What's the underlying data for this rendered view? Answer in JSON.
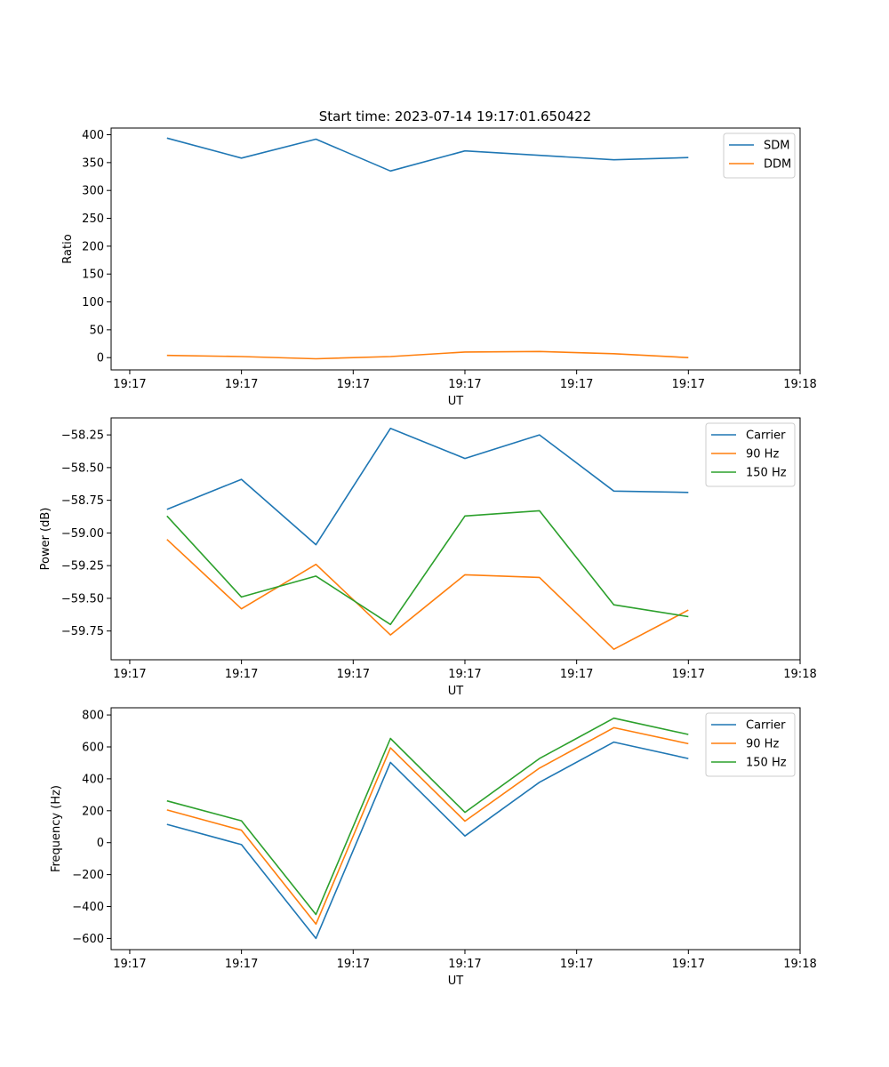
{
  "figure_title": "Start time: 2023-07-14 19:17:01.650422",
  "chart_data": [
    {
      "type": "line",
      "title": "Start time: 2023-07-14 19:17:01.650422",
      "xlabel": "UT",
      "ylabel": "Ratio",
      "x_tick_labels": [
        "19:17",
        "19:17",
        "19:17",
        "19:17",
        "19:17",
        "19:17",
        "19:18"
      ],
      "x_index_range": [
        -0.25,
        9.0
      ],
      "x": [
        0.5,
        1.5,
        2.5,
        3.5,
        4.5,
        5.5,
        6.5,
        7.5
      ],
      "ylim": [
        -22,
        412
      ],
      "y_ticks": [
        0,
        50,
        100,
        150,
        200,
        250,
        300,
        350,
        400
      ],
      "legend": "top-right",
      "series": [
        {
          "name": "SDM",
          "color": "#1f77b4",
          "values": [
            394,
            358,
            392,
            335,
            371,
            363,
            355,
            359
          ]
        },
        {
          "name": "DDM",
          "color": "#ff7f0e",
          "values": [
            4,
            2,
            -2,
            2,
            10,
            11,
            7,
            0
          ]
        }
      ]
    },
    {
      "type": "line",
      "title": "",
      "xlabel": "UT",
      "ylabel": "Power (dB)",
      "x_tick_labels": [
        "19:17",
        "19:17",
        "19:17",
        "19:17",
        "19:17",
        "19:17",
        "19:18"
      ],
      "x_index_range": [
        -0.25,
        9.0
      ],
      "x": [
        0.5,
        1.5,
        2.5,
        3.5,
        4.5,
        5.5,
        6.5,
        7.5
      ],
      "ylim": [
        -59.97,
        -58.12
      ],
      "y_ticks": [
        -59.75,
        -59.5,
        -59.25,
        -59.0,
        -58.75,
        -58.5,
        -58.25
      ],
      "y_tick_labels": [
        "−59.75",
        "−59.50",
        "−59.25",
        "−59.00",
        "−58.75",
        "−58.50",
        "−58.25"
      ],
      "legend": "top-right",
      "series": [
        {
          "name": "Carrier",
          "color": "#1f77b4",
          "values": [
            -58.82,
            -58.59,
            -59.09,
            -58.2,
            -58.43,
            -58.25,
            -58.68,
            -58.69
          ]
        },
        {
          "name": "90 Hz",
          "color": "#ff7f0e",
          "values": [
            -59.05,
            -59.58,
            -59.24,
            -59.78,
            -59.32,
            -59.34,
            -59.89,
            -59.59
          ]
        },
        {
          "name": "150 Hz",
          "color": "#2ca02c",
          "values": [
            -58.87,
            -59.49,
            -59.33,
            -59.7,
            -58.87,
            -58.83,
            -59.55,
            -59.64
          ]
        }
      ]
    },
    {
      "type": "line",
      "title": "",
      "xlabel": "UT",
      "ylabel": "Frequency (Hz)",
      "x_tick_labels": [
        "19:17",
        "19:17",
        "19:17",
        "19:17",
        "19:17",
        "19:17",
        "19:18"
      ],
      "x_index_range": [
        -0.25,
        9.0
      ],
      "x": [
        0.5,
        1.5,
        2.5,
        3.5,
        4.5,
        5.5,
        6.5,
        7.5
      ],
      "ylim": [
        -670,
        845
      ],
      "y_ticks": [
        -600,
        -400,
        -200,
        0,
        200,
        400,
        600,
        800
      ],
      "y_tick_labels": [
        "−600",
        "−400",
        "−200",
        "0",
        "200",
        "400",
        "600",
        "800"
      ],
      "legend": "top-right",
      "series": [
        {
          "name": "Carrier",
          "color": "#1f77b4",
          "values": [
            115,
            -12,
            -600,
            503,
            42,
            378,
            630,
            527
          ]
        },
        {
          "name": "90 Hz",
          "color": "#ff7f0e",
          "values": [
            205,
            78,
            -510,
            594,
            135,
            467,
            720,
            620
          ]
        },
        {
          "name": "150 Hz",
          "color": "#2ca02c",
          "values": [
            262,
            137,
            -450,
            653,
            190,
            527,
            780,
            678
          ]
        }
      ]
    }
  ]
}
